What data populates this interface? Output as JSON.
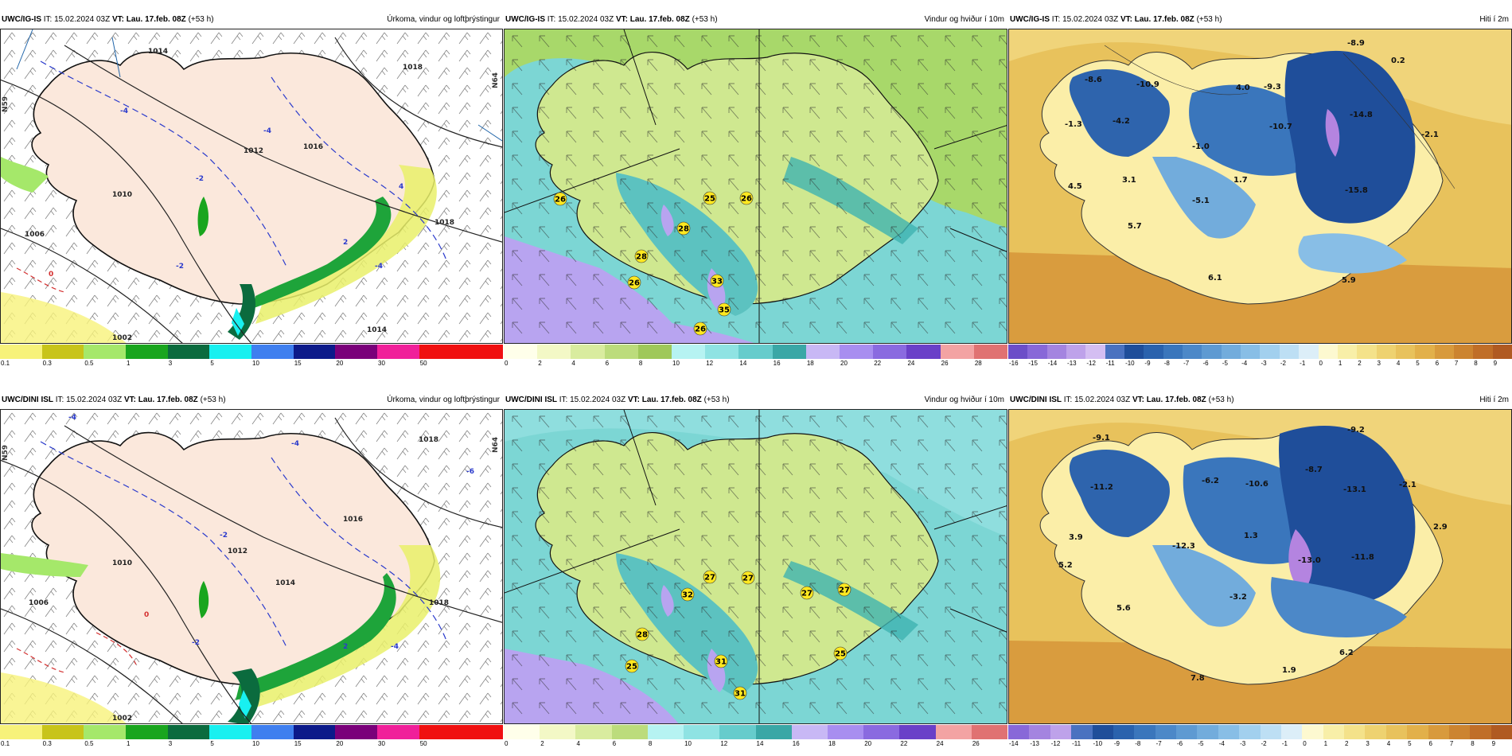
{
  "rows": [
    {
      "precip": {
        "model": "UWC/IG-IS",
        "it_label": "IT:",
        "it_value": "15.02.2024 03Z",
        "vt_label": "VT:",
        "vt_value": "Lau. 17.feb. 08Z",
        "lead": "(+53 h)",
        "title": "Úrkoma, vindur og loftþrýstingur",
        "isobars": [
          "1014",
          "1018",
          "1010",
          "1016",
          "1006",
          "1012",
          "1014",
          "1002",
          "1018"
        ],
        "temps": [
          "-4",
          "-2",
          "-4",
          "-2",
          "0",
          "2",
          "4",
          "-4"
        ]
      },
      "wind": {
        "model": "UWC/IG-IS",
        "it_label": "IT:",
        "it_value": "15.02.2024 03Z",
        "vt_label": "VT:",
        "vt_value": "Lau. 17.feb. 08Z",
        "lead": "(+53 h)",
        "title": "Vindur og hviður í 10m",
        "gusts": [
          "26",
          "28",
          "25",
          "26",
          "28",
          "26",
          "33",
          "35",
          "26"
        ]
      },
      "temp": {
        "model": "UWC/IG-IS",
        "it_label": "IT:",
        "it_value": "15.02.2024 03Z",
        "vt_label": "VT:",
        "vt_value": "Lau. 17.feb. 08Z",
        "lead": "(+53 h)",
        "title": "Hiti í 2m",
        "values": [
          "-8.9",
          "0.2",
          "-8.6",
          "-10.9",
          "4.0",
          "-9.3",
          "-1.3",
          "-4.2",
          "-10.7",
          "-14.8",
          "-2.1",
          "-1.0",
          "1.7",
          "4.5",
          "3.1",
          "-15.8",
          "-5.1",
          "5.7",
          "6.1",
          "5.9"
        ]
      }
    },
    {
      "precip": {
        "model": "UWC/DINI ISL",
        "it_label": "IT:",
        "it_value": "15.02.2024 03Z",
        "vt_label": "VT:",
        "vt_value": "Lau. 17.feb. 08Z",
        "lead": "(+53 h)",
        "title": "Úrkoma, vindur og loftþrýstingur",
        "isobars": [
          "1018",
          "1016",
          "1010",
          "1012",
          "1006",
          "1014",
          "1018",
          "1002"
        ],
        "temps": [
          "-4",
          "-2",
          "-4",
          "-2",
          "0",
          "2",
          "-6",
          "-4"
        ]
      },
      "wind": {
        "model": "UWC/DINI ISL",
        "it_label": "IT:",
        "it_value": "15.02.2024 03Z",
        "vt_label": "VT:",
        "vt_value": "Lau. 17.feb. 08Z",
        "lead": "(+53 h)",
        "title": "Vindur og hviður í 10m",
        "gusts": [
          "32",
          "27",
          "27",
          "27",
          "27",
          "28",
          "25",
          "31",
          "25",
          "31"
        ]
      },
      "temp": {
        "model": "UWC/DINI ISL",
        "it_label": "IT:",
        "it_value": "15.02.2024 03Z",
        "vt_label": "VT:",
        "vt_value": "Lau. 17.feb. 08Z",
        "lead": "(+53 h)",
        "title": "Hiti í 2m",
        "values": [
          "-9.2",
          "-9.1",
          "-6.2",
          "-10.6",
          "-8.7",
          "-13.1",
          "-2.1",
          "-11.2",
          "2.9",
          "1.3",
          "3.9",
          "-12.3",
          "-13.0",
          "-11.8",
          "5.2",
          "-3.2",
          "5.6",
          "6.2",
          "1.9",
          "7.8"
        ]
      }
    }
  ],
  "legends": {
    "precip": {
      "ticks": [
        "0.1",
        "0.3",
        "0.5",
        "1",
        "3",
        "5",
        "10",
        "15",
        "20",
        "30",
        "50",
        ""
      ],
      "colors": [
        "#f7f27a",
        "#c8c41a",
        "#a5e86a",
        "#19a51e",
        "#0b6b3e",
        "#18f0f0",
        "#3f7fef",
        "#0c1a8a",
        "#7a007a",
        "#f0209a",
        "#f01010",
        "#f01010"
      ]
    },
    "wind_row1": {
      "ticks": [
        "0",
        "2",
        "4",
        "6",
        "8",
        "10",
        "12",
        "14",
        "16",
        "18",
        "20",
        "22",
        "24",
        "26",
        "28"
      ],
      "colors": [
        "#ffffea",
        "#f3f8c6",
        "#d9ec9f",
        "#bcdc7c",
        "#9fc85a",
        "#b6f3f2",
        "#8fe3e3",
        "#66cccc",
        "#3aa7a6",
        "#c8b8f5",
        "#a88ef0",
        "#8a6ae0",
        "#6a40c8",
        "#f3a3a3",
        "#e07272"
      ]
    },
    "wind_row2": {
      "ticks": [
        "0",
        "2",
        "4",
        "6",
        "8",
        "10",
        "12",
        "14",
        "16",
        "18",
        "20",
        "22",
        "24",
        "26"
      ],
      "colors": [
        "#ffffea",
        "#f3f8c6",
        "#d9ec9f",
        "#bcdc7c",
        "#b6f3f2",
        "#8fe3e3",
        "#66cccc",
        "#3aa7a6",
        "#c8b8f5",
        "#a88ef0",
        "#8a6ae0",
        "#6a40c8",
        "#f3a3a3",
        "#e07272"
      ]
    },
    "temp_row1": {
      "ticks": [
        "-16",
        "-15",
        "-14",
        "-13",
        "-12",
        "-11",
        "-10",
        "-9",
        "-8",
        "-7",
        "-6",
        "-5",
        "-4",
        "-3",
        "-2",
        "-1",
        "0",
        "1",
        "2",
        "3",
        "4",
        "5",
        "6",
        "7",
        "8",
        "9"
      ],
      "colors": [
        "#6c4ec8",
        "#8868d8",
        "#a484e0",
        "#bea2ea",
        "#d4bef2",
        "#4a72c0",
        "#1f4e9a",
        "#2a62ad",
        "#3a76bc",
        "#4c88c8",
        "#5e9ad2",
        "#72acdc",
        "#88bee6",
        "#a2d0ee",
        "#bddff4",
        "#dceef8",
        "#fdf9d0",
        "#f8efa8",
        "#f4e28a",
        "#eed270",
        "#e8c25c",
        "#e2b04a",
        "#d89a3c",
        "#cc8430",
        "#c06e28",
        "#b05a22"
      ]
    },
    "temp_row2": {
      "ticks": [
        "-14",
        "-13",
        "-12",
        "-11",
        "-10",
        "-9",
        "-8",
        "-7",
        "-6",
        "-5",
        "-4",
        "-3",
        "-2",
        "-1",
        "0",
        "1",
        "2",
        "3",
        "4",
        "5",
        "6",
        "7",
        "8",
        "9"
      ],
      "colors": [
        "#8868d8",
        "#a484e0",
        "#bea2ea",
        "#4a72c0",
        "#1f4e9a",
        "#2a62ad",
        "#3a76bc",
        "#4c88c8",
        "#5e9ad2",
        "#72acdc",
        "#88bee6",
        "#a2d0ee",
        "#bddff4",
        "#dceef8",
        "#fdf9d0",
        "#f8efa8",
        "#f4e28a",
        "#eed270",
        "#e8c25c",
        "#e2b04a",
        "#d89a3c",
        "#cc8430",
        "#c06e28",
        "#b05a22"
      ]
    }
  },
  "frame_labels": [
    "N59",
    "N64",
    "N59",
    "N64"
  ]
}
